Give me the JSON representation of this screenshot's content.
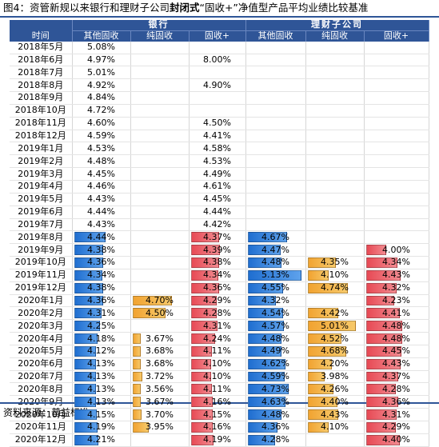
{
  "title": {
    "prefix": "图4：资管新规以来银行和理财子公司",
    "bold": "封闭式",
    "suffix": "“固收+”净值型产品平均业绩比较基准"
  },
  "source": "资料来源：普益标准",
  "table": {
    "group_bank": "银行",
    "group_wmc": "理财子公司",
    "columns": [
      "时间",
      "其他固收",
      "纯固收",
      "固收+",
      "其他固收",
      "纯固收",
      "固收+"
    ],
    "colors": {
      "blue": "#2f7fe0",
      "orange": "#f5b240",
      "red": "#ea5a62",
      "header": "#2f5597"
    },
    "rows": [
      {
        "time": "2018年5月",
        "cells": [
          "5.08%",
          "",
          "",
          "",
          "",
          ""
        ],
        "colored": false
      },
      {
        "time": "2018年6月",
        "cells": [
          "4.97%",
          "",
          "8.00%",
          "",
          "",
          ""
        ],
        "colored": false
      },
      {
        "time": "2018年7月",
        "cells": [
          "5.01%",
          "",
          "",
          "",
          "",
          ""
        ],
        "colored": false
      },
      {
        "time": "2018年8月",
        "cells": [
          "4.92%",
          "",
          "4.90%",
          "",
          "",
          ""
        ],
        "colored": false
      },
      {
        "time": "2018年9月",
        "cells": [
          "4.84%",
          "",
          "",
          "",
          "",
          ""
        ],
        "colored": false
      },
      {
        "time": "2018年10月",
        "cells": [
          "4.72%",
          "",
          "",
          "",
          "",
          ""
        ],
        "colored": false
      },
      {
        "time": "2018年11月",
        "cells": [
          "4.60%",
          "",
          "4.50%",
          "",
          "",
          ""
        ],
        "colored": false
      },
      {
        "time": "2018年12月",
        "cells": [
          "4.59%",
          "",
          "4.41%",
          "",
          "",
          ""
        ],
        "colored": false
      },
      {
        "time": "2019年1月",
        "cells": [
          "4.53%",
          "",
          "4.58%",
          "",
          "",
          ""
        ],
        "colored": false
      },
      {
        "time": "2019年2月",
        "cells": [
          "4.48%",
          "",
          "4.53%",
          "",
          "",
          ""
        ],
        "colored": false
      },
      {
        "time": "2019年3月",
        "cells": [
          "4.45%",
          "",
          "4.49%",
          "",
          "",
          ""
        ],
        "colored": false
      },
      {
        "time": "2019年4月",
        "cells": [
          "4.46%",
          "",
          "4.61%",
          "",
          "",
          ""
        ],
        "colored": false
      },
      {
        "time": "2019年5月",
        "cells": [
          "4.43%",
          "",
          "4.45%",
          "",
          "",
          ""
        ],
        "colored": false
      },
      {
        "time": "2019年6月",
        "cells": [
          "4.44%",
          "",
          "4.44%",
          "",
          "",
          ""
        ],
        "colored": false
      },
      {
        "time": "2019年7月",
        "cells": [
          "4.43%",
          "",
          "4.42%",
          "",
          "",
          ""
        ],
        "colored": false
      },
      {
        "time": "2019年8月",
        "cells": [
          "4.44%",
          "",
          "4.37%",
          "4.67%",
          "",
          ""
        ],
        "colored": true
      },
      {
        "time": "2019年9月",
        "cells": [
          "4.38%",
          "",
          "4.39%",
          "4.47%",
          "",
          "4.00%"
        ],
        "colored": true
      },
      {
        "time": "2019年10月",
        "cells": [
          "4.36%",
          "",
          "4.38%",
          "4.48%",
          "4.35%",
          "4.34%"
        ],
        "colored": true
      },
      {
        "time": "2019年11月",
        "cells": [
          "4.34%",
          "",
          "4.34%",
          "5.13%",
          "4.10%",
          "4.43%"
        ],
        "colored": true
      },
      {
        "time": "2019年12月",
        "cells": [
          "4.38%",
          "",
          "4.36%",
          "4.55%",
          "4.74%",
          "4.32%"
        ],
        "colored": true
      },
      {
        "time": "2020年1月",
        "cells": [
          "4.36%",
          "4.70%",
          "4.29%",
          "4.32%",
          "",
          "4.23%"
        ],
        "colored": true
      },
      {
        "time": "2020年2月",
        "cells": [
          "4.31%",
          "4.50%",
          "4.28%",
          "4.54%",
          "4.42%",
          "4.41%"
        ],
        "colored": true
      },
      {
        "time": "2020年3月",
        "cells": [
          "4.25%",
          "",
          "4.31%",
          "4.57%",
          "5.01%",
          "4.48%"
        ],
        "colored": true
      },
      {
        "time": "2020年4月",
        "cells": [
          "4.18%",
          "3.67%",
          "4.24%",
          "4.48%",
          "4.52%",
          "4.48%"
        ],
        "colored": true
      },
      {
        "time": "2020年5月",
        "cells": [
          "4.12%",
          "3.68%",
          "4.11%",
          "4.49%",
          "4.68%",
          "4.45%"
        ],
        "colored": true
      },
      {
        "time": "2020年6月",
        "cells": [
          "4.13%",
          "3.68%",
          "4.10%",
          "4.62%",
          "4.20%",
          "4.43%"
        ],
        "colored": true
      },
      {
        "time": "2020年7月",
        "cells": [
          "4.13%",
          "3.72%",
          "4.10%",
          "4.59%",
          "3.98%",
          "4.37%"
        ],
        "colored": true
      },
      {
        "time": "2020年8月",
        "cells": [
          "4.13%",
          "3.56%",
          "4.11%",
          "4.73%",
          "4.26%",
          "4.28%"
        ],
        "colored": true
      },
      {
        "time": "2020年9月",
        "cells": [
          "4.13%",
          "3.67%",
          "4.16%",
          "4.63%",
          "4.40%",
          "4.36%"
        ],
        "colored": true
      },
      {
        "time": "2020年10月",
        "cells": [
          "4.15%",
          "3.70%",
          "4.15%",
          "4.48%",
          "4.43%",
          "4.31%"
        ],
        "colored": true
      },
      {
        "time": "2020年11月",
        "cells": [
          "4.19%",
          "3.95%",
          "4.16%",
          "4.36%",
          "4.10%",
          "4.29%"
        ],
        "colored": true
      },
      {
        "time": "2020年12月",
        "cells": [
          "4.21%",
          "",
          "4.19%",
          "4.28%",
          "",
          "4.40%"
        ],
        "colored": true
      }
    ]
  }
}
